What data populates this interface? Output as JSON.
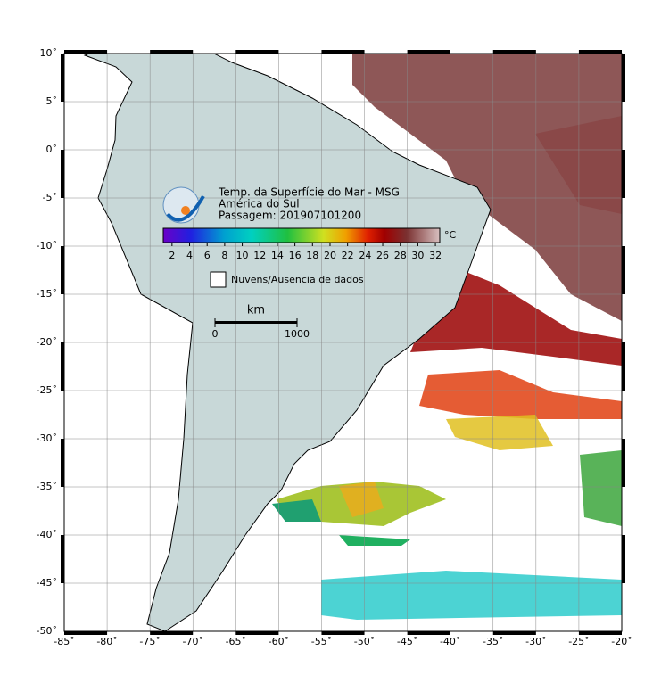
{
  "header": {
    "title": "Temp. da Superfície do Mar - MSG",
    "region": "América do Sul",
    "pass": "Passagem: 201907101200"
  },
  "colorbar": {
    "unit": "°C",
    "lim": [
      1,
      32.5
    ],
    "ticks": [
      2,
      4,
      6,
      8,
      10,
      12,
      14,
      16,
      18,
      20,
      22,
      24,
      26,
      28,
      30,
      32
    ]
  },
  "legend": {
    "label": "Nuvens/Ausencia de dados"
  },
  "scale": {
    "unit": "km",
    "ticks": [
      0,
      1000
    ]
  },
  "map": {
    "xlim": [
      -85,
      -20
    ],
    "ylim": [
      -50,
      10
    ],
    "xticks": [
      {
        "value": -85,
        "label": "-85˚"
      },
      {
        "value": -80,
        "label": "-80˚"
      },
      {
        "value": -75,
        "label": "-75˚"
      },
      {
        "value": -70,
        "label": "-70˚"
      },
      {
        "value": -65,
        "label": "-65˚"
      },
      {
        "value": -60,
        "label": "-60˚"
      },
      {
        "value": -55,
        "label": "-55˚"
      },
      {
        "value": -50,
        "label": "-50˚"
      },
      {
        "value": -45,
        "label": "-45˚"
      },
      {
        "value": -40,
        "label": "-40˚"
      },
      {
        "value": -35,
        "label": "-35˚"
      },
      {
        "value": -30,
        "label": "-30˚"
      },
      {
        "value": -25,
        "label": "-25˚"
      },
      {
        "value": -20,
        "label": "-20˚"
      }
    ],
    "yticks": [
      {
        "value": 10,
        "label": "10˚"
      },
      {
        "value": 5,
        "label": "5˚"
      },
      {
        "value": 0,
        "label": "0˚"
      },
      {
        "value": -5,
        "label": "-5˚"
      },
      {
        "value": -10,
        "label": "-10˚"
      },
      {
        "value": -15,
        "label": "-15˚"
      },
      {
        "value": -20,
        "label": "-20˚"
      },
      {
        "value": -25,
        "label": "-25˚"
      },
      {
        "value": -30,
        "label": "-30˚"
      },
      {
        "value": -35,
        "label": "-35˚"
      },
      {
        "value": -40,
        "label": "-40˚"
      },
      {
        "value": -45,
        "label": "-45˚"
      },
      {
        "value": -50,
        "label": "-50˚"
      }
    ]
  }
}
